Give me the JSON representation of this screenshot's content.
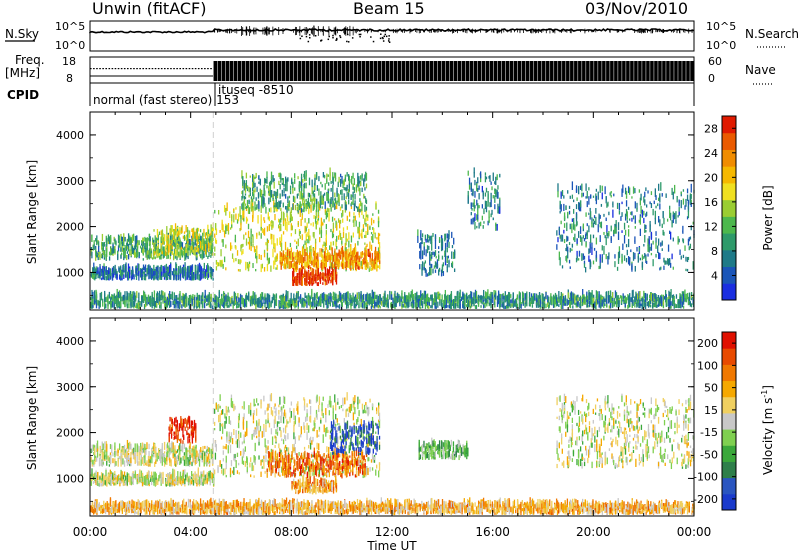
{
  "header": {
    "station": "Unwin (fitACF)",
    "beam": "Beam 15",
    "date": "03/Nov/2010"
  },
  "top_panels": {
    "nsky_label": "N.Sky",
    "nsky_ticks": [
      "10^5",
      "10^0"
    ],
    "nsearch_label": "N.Search",
    "nsearch_ticks": [
      "10^5",
      "10^0"
    ],
    "freq_label": "Freq.",
    "freq_unit": "[MHz]",
    "freq_ticks": [
      "18",
      "8"
    ],
    "nave_label": "Nave",
    "nave_ticks": [
      "60",
      "0"
    ],
    "cpid_label": "CPID",
    "cpid_mode1": "normal (fast stereo) 153",
    "cpid_mode2": "ituseq -8510"
  },
  "chart_data": [
    {
      "type": "heatmap",
      "name": "power",
      "ylabel": "Slant Range [km]",
      "xlabel": "Time UT",
      "x_ticks": [
        "00:00",
        "04:00",
        "08:00",
        "12:00",
        "16:00",
        "20:00",
        "00:00"
      ],
      "y_ticks": [
        "1000",
        "2000",
        "3000",
        "4000"
      ],
      "ylim": [
        180,
        4500
      ],
      "colorbar_label": "Power [dB]",
      "colorbar_ticks": [
        "4",
        "8",
        "12",
        "16",
        "20",
        "24",
        "28"
      ],
      "colorbar_range": [
        0,
        30
      ],
      "colors": [
        "#1a2ee0",
        "#1a55b8",
        "#1e7a88",
        "#2e9a6a",
        "#4db84d",
        "#9acd32",
        "#f0e020",
        "#f5b800",
        "#f08c00",
        "#ea5a00",
        "#e01a00"
      ],
      "regions": [
        {
          "t0": 0.0,
          "t1": 4.9,
          "r0": 1250,
          "r1": 1700,
          "level": 0.35
        },
        {
          "t0": 0.0,
          "t1": 4.9,
          "r0": 820,
          "r1": 1050,
          "level": 0.2
        },
        {
          "t0": 2.5,
          "t1": 4.9,
          "r0": 1350,
          "r1": 1900,
          "level": 0.55
        },
        {
          "t0": 4.9,
          "t1": 11.5,
          "r0": 1000,
          "r1": 2400,
          "level": 0.55
        },
        {
          "t0": 6.0,
          "t1": 11.0,
          "r0": 2300,
          "r1": 3100,
          "level": 0.35
        },
        {
          "t0": 7.5,
          "t1": 11.5,
          "r0": 1050,
          "r1": 1400,
          "level": 0.75
        },
        {
          "t0": 8.0,
          "t1": 9.8,
          "r0": 700,
          "r1": 950,
          "level": 0.95
        },
        {
          "t0": 13.0,
          "t1": 14.5,
          "r0": 900,
          "r1": 1800,
          "level": 0.25
        },
        {
          "t0": 15.0,
          "t1": 16.3,
          "r0": 1900,
          "r1": 3200,
          "level": 0.25
        },
        {
          "t0": 18.5,
          "t1": 24.0,
          "r0": 1000,
          "r1": 2800,
          "level": 0.25
        },
        {
          "t0": 0.0,
          "t1": 24.0,
          "r0": 200,
          "r1": 450,
          "level": 0.3
        }
      ]
    },
    {
      "type": "heatmap",
      "name": "velocity",
      "ylabel": "Slant Range [km]",
      "xlabel": "Time UT",
      "x_ticks": [
        "00:00",
        "04:00",
        "08:00",
        "12:00",
        "16:00",
        "20:00",
        "00:00"
      ],
      "y_ticks": [
        "1000",
        "2000",
        "3000",
        "4000"
      ],
      "ylim": [
        180,
        4500
      ],
      "colorbar_label": "Velocity [m s^-1]",
      "colorbar_ticks": [
        "200",
        "100",
        "50",
        "15",
        "-15",
        "-50",
        "-100",
        "-200"
      ],
      "colorbar_range": [
        -250,
        250
      ],
      "colors": [
        "#1a3acc",
        "#2a55c0",
        "#2e7f4a",
        "#3aa83a",
        "#7fd050",
        "#c8c8c8",
        "#f0d060",
        "#f5a800",
        "#f07800",
        "#e84a00",
        "#e01000"
      ],
      "regions": [
        {
          "t0": 0.0,
          "t1": 4.9,
          "r0": 1250,
          "r1": 1650,
          "level": 0.5
        },
        {
          "t0": 0.0,
          "t1": 4.9,
          "r0": 820,
          "r1": 1050,
          "level": 0.5
        },
        {
          "t0": 3.1,
          "t1": 4.2,
          "r0": 1750,
          "r1": 2250,
          "level": 0.95
        },
        {
          "t0": 4.9,
          "t1": 11.5,
          "r0": 1000,
          "r1": 2700,
          "level": 0.5
        },
        {
          "t0": 7.0,
          "t1": 11.0,
          "r0": 1000,
          "r1": 1500,
          "level": 0.8
        },
        {
          "t0": 8.0,
          "t1": 9.8,
          "r0": 650,
          "r1": 900,
          "level": 0.7
        },
        {
          "t0": 9.5,
          "t1": 11.5,
          "r0": 1500,
          "r1": 2100,
          "level": 0.1
        },
        {
          "t0": 13.0,
          "t1": 15.0,
          "r0": 1400,
          "r1": 1700,
          "level": 0.35
        },
        {
          "t0": 18.5,
          "t1": 24.0,
          "r0": 1200,
          "r1": 2700,
          "level": 0.5
        },
        {
          "t0": 0.0,
          "t1": 24.0,
          "r0": 200,
          "r1": 400,
          "level": 0.65
        }
      ]
    }
  ]
}
